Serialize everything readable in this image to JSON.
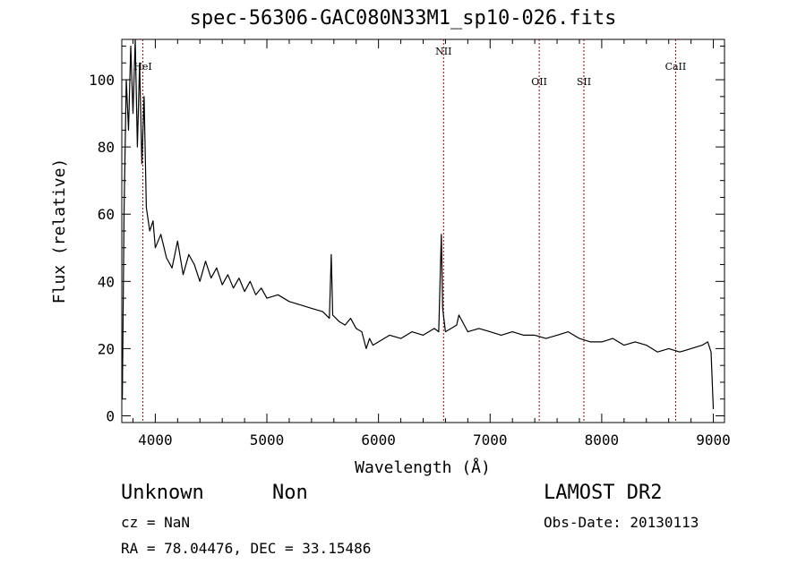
{
  "chart_data": {
    "type": "line",
    "title": "spec-56306-GAC080N33M1_sp10-026.fits",
    "xlabel": "Wavelength (Å)",
    "ylabel": "Flux (relative)",
    "xlim": [
      3700,
      9100
    ],
    "ylim": [
      -2,
      112
    ],
    "x_ticks": [
      4000,
      5000,
      6000,
      7000,
      8000,
      9000
    ],
    "y_ticks": [
      0,
      20,
      40,
      60,
      80,
      100
    ],
    "grid": false,
    "legend": "none",
    "line_color": "#000000",
    "marker_color": "#a00000",
    "series": [
      {
        "x": [
          3705,
          3720,
          3740,
          3760,
          3780,
          3800,
          3820,
          3840,
          3860,
          3880,
          3900,
          3920,
          3950,
          3980,
          4000,
          4050,
          4100,
          4150,
          4200,
          4250,
          4300,
          4350,
          4400,
          4450,
          4500,
          4550,
          4600,
          4650,
          4700,
          4750,
          4800,
          4850,
          4900,
          4950,
          5000,
          5100,
          5200,
          5300,
          5400,
          5500,
          5560,
          5577,
          5590,
          5650,
          5700,
          5750,
          5800,
          5850,
          5890,
          5920,
          5950,
          6000,
          6100,
          6200,
          6300,
          6400,
          6500,
          6540,
          6563,
          6575,
          6600,
          6650,
          6700,
          6720,
          6800,
          6900,
          7000,
          7100,
          7200,
          7300,
          7400,
          7500,
          7600,
          7700,
          7800,
          7900,
          8000,
          8100,
          8200,
          8300,
          8400,
          8450,
          8500,
          8600,
          8700,
          8800,
          8900,
          8950,
          8980,
          9000
        ],
        "values": [
          5,
          60,
          100,
          85,
          110,
          90,
          112,
          80,
          105,
          75,
          95,
          62,
          55,
          58,
          50,
          54,
          47,
          44,
          52,
          42,
          48,
          45,
          40,
          46,
          41,
          44,
          39,
          42,
          38,
          41,
          37,
          40,
          36,
          38,
          35,
          36,
          34,
          33,
          32,
          31,
          29,
          48,
          30,
          28,
          27,
          29,
          26,
          25,
          20,
          23,
          21,
          22,
          24,
          23,
          25,
          24,
          26,
          25,
          54,
          32,
          25,
          26,
          27,
          30,
          25,
          26,
          25,
          24,
          25,
          24,
          24,
          23,
          24,
          25,
          23,
          22,
          22,
          23,
          21,
          22,
          21,
          20,
          19,
          20,
          19,
          20,
          21,
          22,
          19,
          2
        ]
      }
    ],
    "lines": [
      {
        "x": 3889,
        "label": "HeI"
      },
      {
        "x": 6583,
        "label": "NII"
      },
      {
        "x": 7440,
        "label": "OII"
      },
      {
        "x": 7840,
        "label": "SII"
      },
      {
        "x": 8662,
        "label": "CaII"
      }
    ]
  },
  "info": {
    "class_label": "Unknown",
    "subclass_label": "Non",
    "cz": "cz = NaN",
    "radec": "RA =  78.04476, DEC =  33.15486",
    "survey": "LAMOST DR2",
    "obs_date": "Obs-Date: 20130113"
  }
}
